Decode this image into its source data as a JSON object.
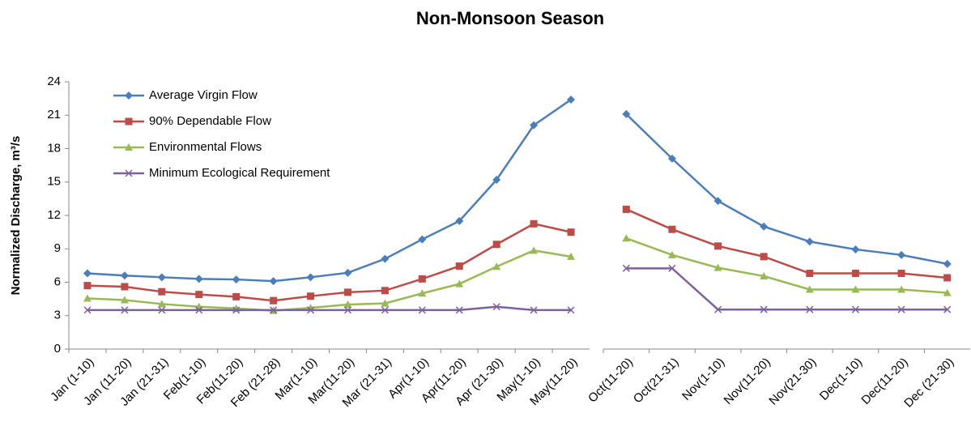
{
  "chart_data": [
    {
      "type": "line",
      "title": "Non-Monsoon Season",
      "y_label": "Normalized  Discharge, m³/s",
      "categories": [
        "Jan (1-10)",
        "Jan (11-20)",
        "Jan (21-31)",
        "Feb(1-10)",
        "Feb(11-20)",
        "Feb (21-28)",
        "Mar(1-10)",
        "Mar(11-20)",
        "Mar (21-31)",
        "Apr(1-10)",
        "Apr(11-20)",
        "Apr (21-30)",
        "May(1-10)",
        "May(11-20)"
      ],
      "ylim": [
        0,
        24
      ],
      "yticks": [
        0,
        3,
        6,
        9,
        12,
        15,
        18,
        21,
        24
      ],
      "legend": "top-left",
      "series": [
        {
          "name": "Average Virgin Flow",
          "color": "#4a7ebb",
          "marker": "diamond",
          "values": [
            6.8,
            6.6,
            6.45,
            6.3,
            6.25,
            6.1,
            6.45,
            6.85,
            8.1,
            9.85,
            11.5,
            15.2,
            20.1,
            22.4
          ]
        },
        {
          "name": "90% Dependable Flow",
          "color": "#be4b48",
          "marker": "square",
          "values": [
            5.7,
            5.6,
            5.15,
            4.9,
            4.7,
            4.35,
            4.75,
            5.1,
            5.25,
            6.3,
            7.45,
            9.4,
            11.25,
            10.5
          ]
        },
        {
          "name": "Environmental Flows",
          "color": "#98b954",
          "marker": "triangle",
          "values": [
            4.55,
            4.4,
            4.05,
            3.8,
            3.65,
            3.45,
            3.7,
            4.0,
            4.1,
            5.0,
            5.85,
            7.4,
            8.85,
            8.3
          ]
        },
        {
          "name": "Minimum Ecological Requirement",
          "color": "#7d60a0",
          "marker": "x",
          "values": [
            3.5,
            3.5,
            3.5,
            3.5,
            3.5,
            3.5,
            3.5,
            3.5,
            3.5,
            3.5,
            3.5,
            3.8,
            3.5,
            3.5
          ]
        }
      ]
    },
    {
      "type": "line",
      "categories": [
        "Oct(11-20)",
        "Oct(21-31)",
        "Nov(1-10)",
        "Nov(11-20)",
        "Nov(21-30)",
        "Dec(1-10)",
        "Dec(11-20)",
        "Dec (21-30)"
      ],
      "ylim": [
        0,
        24
      ],
      "series": [
        {
          "color": "#4a7ebb",
          "marker": "diamond",
          "values": [
            21.1,
            17.1,
            13.3,
            11.0,
            9.65,
            8.95,
            8.45,
            7.65
          ]
        },
        {
          "color": "#be4b48",
          "marker": "square",
          "values": [
            12.55,
            10.75,
            9.25,
            8.3,
            6.8,
            6.8,
            6.8,
            6.4
          ]
        },
        {
          "color": "#98b954",
          "marker": "triangle",
          "values": [
            9.95,
            8.45,
            7.3,
            6.55,
            5.35,
            5.35,
            5.35,
            5.05
          ]
        },
        {
          "color": "#7d60a0",
          "marker": "x",
          "values": [
            7.25,
            7.25,
            3.55,
            3.55,
            3.55,
            3.55,
            3.55,
            3.55
          ]
        }
      ]
    }
  ]
}
